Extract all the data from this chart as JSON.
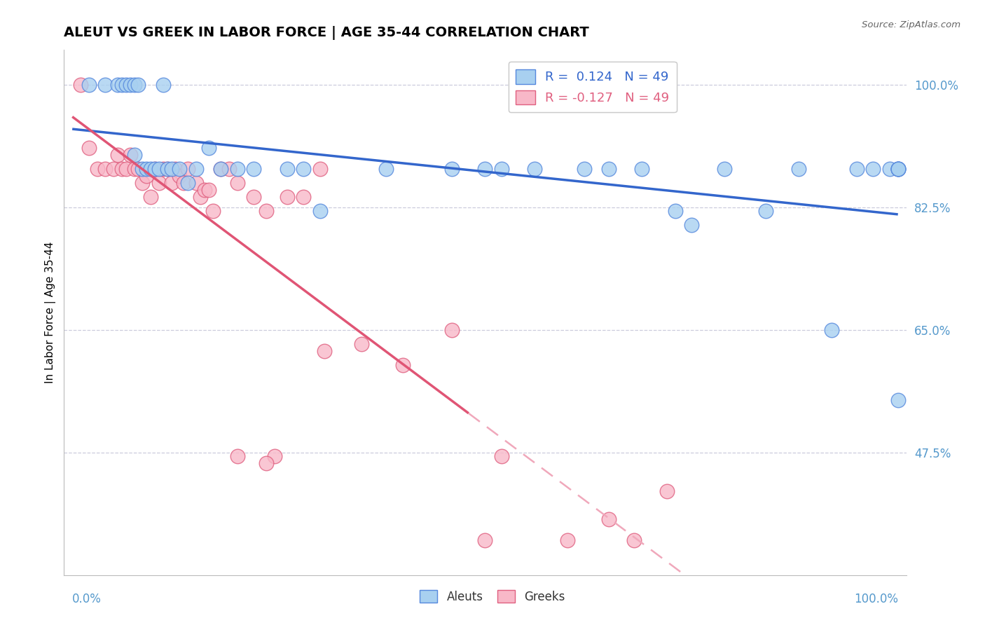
{
  "title": "ALEUT VS GREEK IN LABOR FORCE | AGE 35-44 CORRELATION CHART",
  "source": "Source: ZipAtlas.com",
  "ylabel": "In Labor Force | Age 35-44",
  "r_aleut": 0.124,
  "n_aleut": 49,
  "r_greek": -0.127,
  "n_greek": 49,
  "aleut_color": "#a8d0f0",
  "aleut_edge_color": "#5588dd",
  "greek_color": "#f8b8c8",
  "greek_edge_color": "#e06080",
  "aleut_line_color": "#3366cc",
  "greek_line_solid_color": "#e05575",
  "greek_line_dash_color": "#f0a8bb",
  "grid_color": "#ccccdd",
  "ytick_labels": [
    "100.0%",
    "82.5%",
    "65.0%",
    "47.5%"
  ],
  "ytick_values": [
    1.0,
    0.825,
    0.65,
    0.475
  ],
  "xmin": 0.0,
  "xmax": 1.0,
  "ymin": 0.3,
  "ymax": 1.05,
  "aleut_x": [
    0.02,
    0.04,
    0.055,
    0.06,
    0.065,
    0.07,
    0.075,
    0.075,
    0.08,
    0.085,
    0.09,
    0.095,
    0.1,
    0.105,
    0.11,
    0.115,
    0.12,
    0.13,
    0.14,
    0.15,
    0.165,
    0.18,
    0.2,
    0.22,
    0.26,
    0.28,
    0.3,
    0.38,
    0.46,
    0.5,
    0.52,
    0.56,
    0.62,
    0.65,
    0.69,
    0.73,
    0.75,
    0.79,
    0.84,
    0.88,
    0.92,
    0.95,
    0.97,
    0.99,
    1.0,
    1.0,
    1.0,
    1.0,
    1.0
  ],
  "aleut_y": [
    1.0,
    1.0,
    1.0,
    1.0,
    1.0,
    1.0,
    1.0,
    0.9,
    1.0,
    0.88,
    0.88,
    0.88,
    0.88,
    0.88,
    1.0,
    0.88,
    0.88,
    0.88,
    0.86,
    0.88,
    0.91,
    0.88,
    0.88,
    0.88,
    0.88,
    0.88,
    0.82,
    0.88,
    0.88,
    0.88,
    0.88,
    0.88,
    0.88,
    0.88,
    0.88,
    0.82,
    0.8,
    0.88,
    0.82,
    0.88,
    0.65,
    0.88,
    0.88,
    0.88,
    0.88,
    0.88,
    0.88,
    0.88,
    0.55
  ],
  "greek_x": [
    0.01,
    0.02,
    0.03,
    0.04,
    0.05,
    0.055,
    0.06,
    0.065,
    0.07,
    0.075,
    0.08,
    0.085,
    0.09,
    0.095,
    0.1,
    0.105,
    0.11,
    0.115,
    0.12,
    0.125,
    0.13,
    0.135,
    0.14,
    0.15,
    0.155,
    0.16,
    0.165,
    0.17,
    0.18,
    0.19,
    0.2,
    0.22,
    0.235,
    0.245,
    0.26,
    0.28,
    0.3,
    0.305,
    0.35,
    0.4,
    0.46,
    0.5,
    0.52,
    0.6,
    0.65,
    0.68,
    0.72,
    0.2,
    0.235
  ],
  "greek_y": [
    1.0,
    0.91,
    0.88,
    0.88,
    0.88,
    0.9,
    0.88,
    0.88,
    0.9,
    0.88,
    0.88,
    0.86,
    0.87,
    0.84,
    0.88,
    0.86,
    0.88,
    0.88,
    0.86,
    0.88,
    0.87,
    0.86,
    0.88,
    0.86,
    0.84,
    0.85,
    0.85,
    0.82,
    0.88,
    0.88,
    0.86,
    0.84,
    0.82,
    0.47,
    0.84,
    0.84,
    0.88,
    0.62,
    0.63,
    0.6,
    0.65,
    0.35,
    0.47,
    0.35,
    0.38,
    0.35,
    0.42,
    0.47,
    0.46
  ]
}
